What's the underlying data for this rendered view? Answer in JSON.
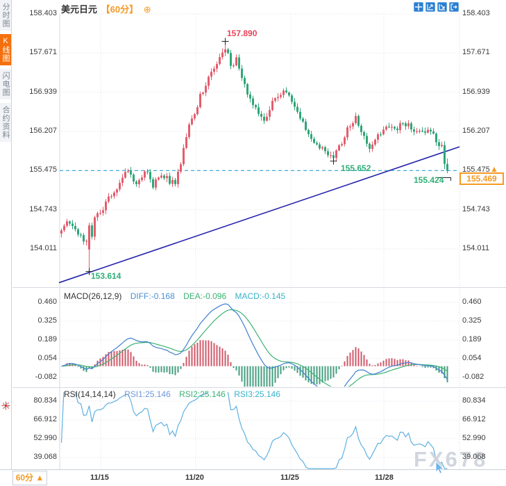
{
  "window": {
    "watermark": "FX678"
  },
  "sidebar": {
    "items": [
      {
        "label": "分时图",
        "active": false
      },
      {
        "label": "K线图",
        "active": true
      },
      {
        "label": "闪电图",
        "active": false
      },
      {
        "label": "合约资料",
        "active": false
      }
    ]
  },
  "header": {
    "title": "美元日元",
    "period_tag": "【60分】",
    "plus_icon": "⊕"
  },
  "toolbar": {
    "icons": [
      "crosshair-move",
      "fit-horizontal",
      "fit-vertical",
      "pan-exit"
    ]
  },
  "period_button": {
    "label": "60分",
    "arrow": "▲"
  },
  "colors": {
    "up": "#e35d6d",
    "down": "#2fa678",
    "hist_up": "#cf5869",
    "hist_down": "#449e7f",
    "diff_line": "#3f7fd0",
    "dea_line": "#3bb273",
    "rsi_line": "#5fb0e0",
    "trendline": "#2323ab",
    "dashed_level": "#2aa3d8",
    "accent_orange": "#f59a23",
    "active_tab": "#f5700d",
    "annotation_red": "#e8435a",
    "annotation_green": "#2fae77",
    "grid": "#dde1e8",
    "axis_text": "#3a3a3a",
    "toolbar_blue": "#2a7fd0",
    "watermark": "#cdd2db"
  },
  "chart_data": [
    {
      "type": "candlestick",
      "title": "美元日元",
      "interval": "60分",
      "y_axis": [
        158.403,
        157.671,
        156.939,
        156.207,
        155.475,
        154.743,
        154.011
      ],
      "x_axis": [
        "11/15",
        "11/20",
        "11/25",
        "11/28"
      ],
      "ylim": [
        153.55,
        158.45
      ],
      "grid": true,
      "last_price": 155.469,
      "price_line_level": 155.475,
      "annotations": {
        "high": "157.890",
        "low": "153.614",
        "swing_low": "155.652",
        "recent_low": "155.424",
        "price_box": "155.469",
        "level_arrow": "▲"
      },
      "trendline": {
        "x1_index": -1,
        "price1": 153.38,
        "x2_index": 143,
        "price2": 155.92
      },
      "candles": 140,
      "path_anchors": [
        [
          0,
          154.38
        ],
        [
          3,
          154.52
        ],
        [
          6,
          154.28
        ],
        [
          9,
          154.1
        ],
        [
          10,
          153.95
        ],
        [
          12,
          154.55
        ],
        [
          15,
          154.78
        ],
        [
          18,
          155.0
        ],
        [
          21,
          155.28
        ],
        [
          24,
          155.45
        ],
        [
          27,
          155.22
        ],
        [
          30,
          155.5
        ],
        [
          33,
          155.18
        ],
        [
          36,
          155.42
        ],
        [
          39,
          155.28
        ],
        [
          41,
          155.22
        ],
        [
          43,
          155.65
        ],
        [
          46,
          156.28
        ],
        [
          49,
          156.72
        ],
        [
          52,
          157.12
        ],
        [
          55,
          157.42
        ],
        [
          57,
          157.6
        ],
        [
          59,
          157.8
        ],
        [
          61,
          157.42
        ],
        [
          63,
          157.58
        ],
        [
          65,
          157.22
        ],
        [
          67,
          156.92
        ],
        [
          70,
          156.62
        ],
        [
          73,
          156.42
        ],
        [
          76,
          156.78
        ],
        [
          79,
          156.92
        ],
        [
          81,
          157.0
        ],
        [
          84,
          156.68
        ],
        [
          87,
          156.38
        ],
        [
          90,
          156.12
        ],
        [
          93,
          155.92
        ],
        [
          96,
          155.8
        ],
        [
          98,
          155.7
        ],
        [
          101,
          156.02
        ],
        [
          104,
          156.32
        ],
        [
          106,
          156.52
        ],
        [
          108,
          156.22
        ],
        [
          111,
          155.88
        ],
        [
          114,
          156.18
        ],
        [
          117,
          156.28
        ],
        [
          120,
          156.22
        ],
        [
          123,
          156.38
        ],
        [
          126,
          156.28
        ],
        [
          129,
          156.18
        ],
        [
          132,
          156.28
        ],
        [
          135,
          156.05
        ],
        [
          137,
          155.93
        ],
        [
          138,
          155.6
        ],
        [
          139,
          155.469
        ]
      ],
      "overrides": {
        "10": {
          "open": 154.0,
          "close": 154.45,
          "low": 153.614,
          "high": 154.5
        },
        "59": {
          "high": 157.89
        },
        "98": {
          "low": 155.652
        },
        "138": {
          "open": 155.95,
          "close": 155.6
        },
        "139": {
          "open": 155.6,
          "close": 155.469,
          "low": 155.424,
          "high": 155.7
        }
      }
    },
    {
      "type": "line+histogram",
      "label": "MACD(26,12,9)",
      "params": [
        26,
        12,
        9
      ],
      "display": {
        "diff": "DIFF:-0.168",
        "dea": "DEA:-0.096",
        "macd": "MACD:-0.145"
      },
      "values": {
        "diff": -0.168,
        "dea": -0.096,
        "macd": -0.145
      },
      "y_axis": [
        0.46,
        0.325,
        0.189,
        0.054,
        -0.082
      ],
      "legend": [
        "DIFF",
        "DEA",
        "MACD"
      ]
    },
    {
      "type": "line",
      "label": "RSI(14,14,14)",
      "params": [
        14,
        14,
        14
      ],
      "display": {
        "rsi1": "RSI1:25.146",
        "rsi2": "RSI2:25.146",
        "rsi3": "RSI3:25.146"
      },
      "values": {
        "rsi1": 25.146,
        "rsi2": 25.146,
        "rsi3": 25.146
      },
      "y_axis": [
        80.834,
        66.912,
        52.99,
        39.068
      ]
    }
  ]
}
